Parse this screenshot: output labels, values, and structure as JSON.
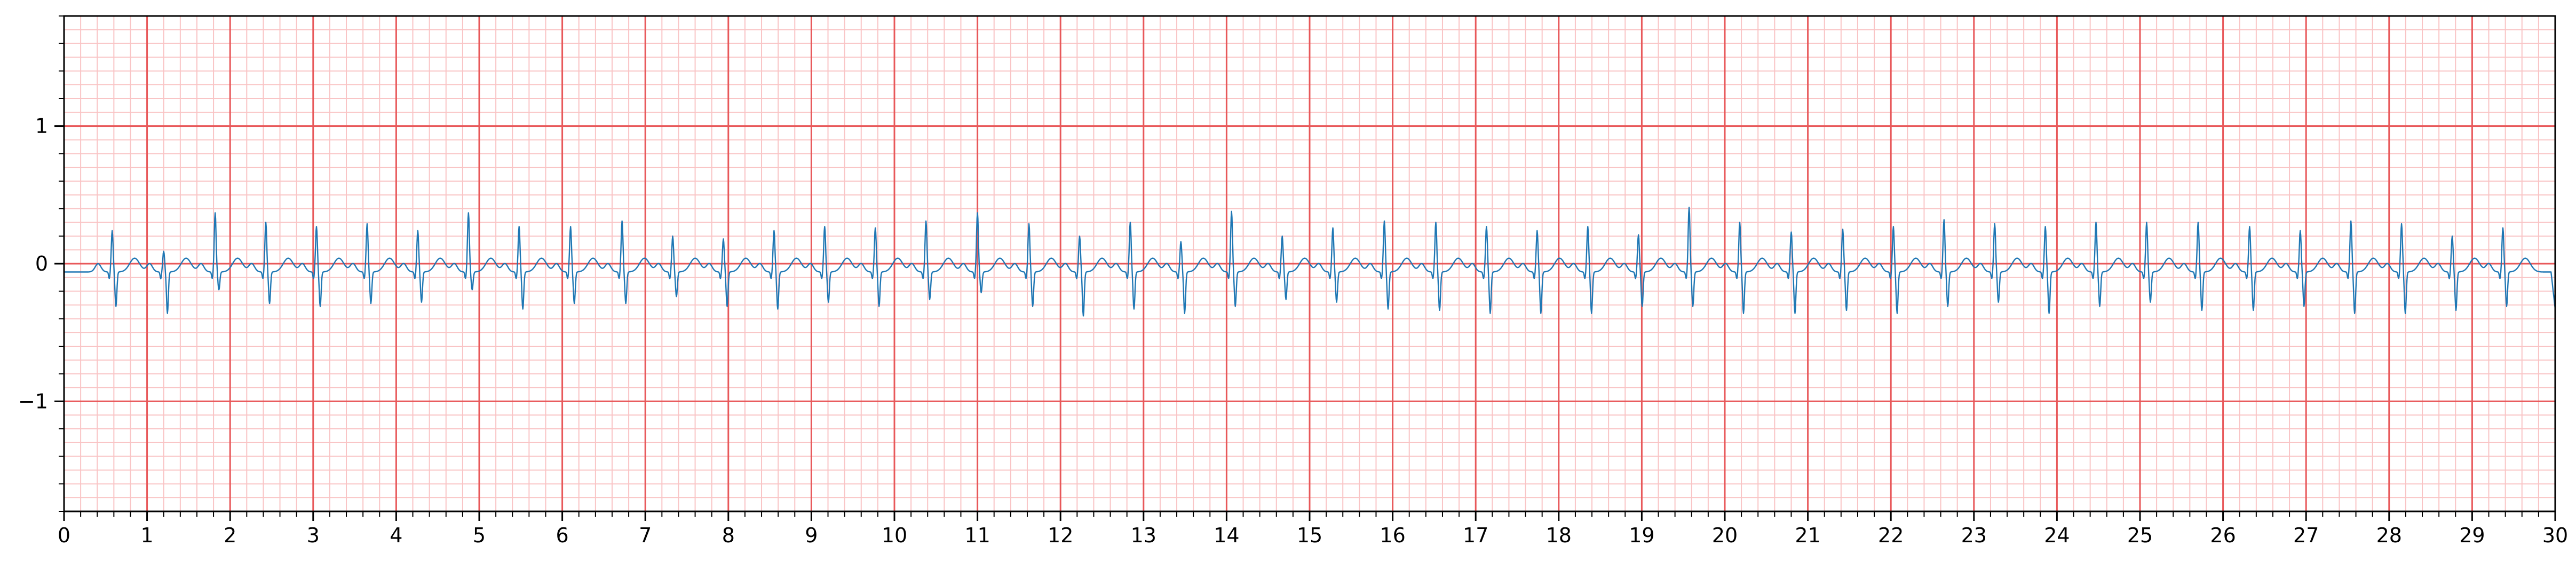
{
  "chart_data": {
    "type": "line",
    "title": "",
    "xlabel": "",
    "ylabel": "",
    "xlim": [
      0,
      30
    ],
    "ylim": [
      -1.8,
      1.8
    ],
    "x_ticks": [
      0,
      1,
      2,
      3,
      4,
      5,
      6,
      7,
      8,
      9,
      10,
      11,
      12,
      13,
      14,
      15,
      16,
      17,
      18,
      19,
      20,
      21,
      22,
      23,
      24,
      25,
      26,
      27,
      28,
      29,
      30
    ],
    "x_tick_labels": [
      "0",
      "1",
      "2",
      "3",
      "4",
      "5",
      "6",
      "7",
      "8",
      "9",
      "10",
      "11",
      "12",
      "13",
      "14",
      "15",
      "16",
      "17",
      "18",
      "19",
      "20",
      "21",
      "22",
      "23",
      "24",
      "25",
      "26",
      "27",
      "28",
      "29",
      "30"
    ],
    "y_ticks": [
      -1,
      0,
      1
    ],
    "y_tick_labels": [
      "−1",
      "0",
      "1"
    ],
    "grid": {
      "major": true,
      "minor": true,
      "major_x_step": 1,
      "major_y_step": 1,
      "minor_x_step": 0.2,
      "minor_y_step": 0.1,
      "major_color": "#e8585a",
      "minor_color": "#f9c4c5"
    },
    "series_color": "#1f77b4",
    "series": [
      {
        "beat_times": [
          0.58,
          1.2,
          1.82,
          2.43,
          3.04,
          3.65,
          4.26,
          4.87,
          5.48,
          6.1,
          6.72,
          7.33,
          7.94,
          8.55,
          9.16,
          9.77,
          10.38,
          11.0,
          11.62,
          12.23,
          12.84,
          13.45,
          14.06,
          14.67,
          15.28,
          15.9,
          16.52,
          17.13,
          17.74,
          18.35,
          18.96,
          19.57,
          20.18,
          20.8,
          21.42,
          22.03,
          22.64,
          23.25,
          23.86,
          24.47,
          25.08,
          25.7,
          26.32,
          26.93,
          27.54,
          28.15,
          28.76,
          29.37
        ],
        "r_peaks": [
          0.3,
          0.15,
          0.43,
          0.36,
          0.33,
          0.35,
          0.3,
          0.43,
          0.33,
          0.33,
          0.37,
          0.26,
          0.24,
          0.3,
          0.33,
          0.32,
          0.37,
          0.43,
          0.35,
          0.26,
          0.36,
          0.22,
          0.44,
          0.26,
          0.32,
          0.37,
          0.36,
          0.33,
          0.3,
          0.33,
          0.27,
          0.47,
          0.36,
          0.29,
          0.31,
          0.33,
          0.38,
          0.35,
          0.33,
          0.36,
          0.36,
          0.36,
          0.33,
          0.3,
          0.37,
          0.35,
          0.26,
          0.32
        ],
        "s_troughs": [
          -0.25,
          -0.3,
          -0.13,
          -0.23,
          -0.25,
          -0.23,
          -0.22,
          -0.13,
          -0.27,
          -0.23,
          -0.23,
          -0.18,
          -0.25,
          -0.27,
          -0.22,
          -0.25,
          -0.2,
          -0.15,
          -0.25,
          -0.32,
          -0.27,
          -0.3,
          -0.25,
          -0.2,
          -0.22,
          -0.27,
          -0.28,
          -0.3,
          -0.3,
          -0.3,
          -0.25,
          -0.25,
          -0.3,
          -0.3,
          -0.28,
          -0.3,
          -0.25,
          -0.22,
          -0.3,
          -0.25,
          -0.22,
          -0.28,
          -0.28,
          -0.25,
          -0.3,
          -0.3,
          -0.28,
          -0.25
        ],
        "end_value": -0.33
      }
    ]
  }
}
